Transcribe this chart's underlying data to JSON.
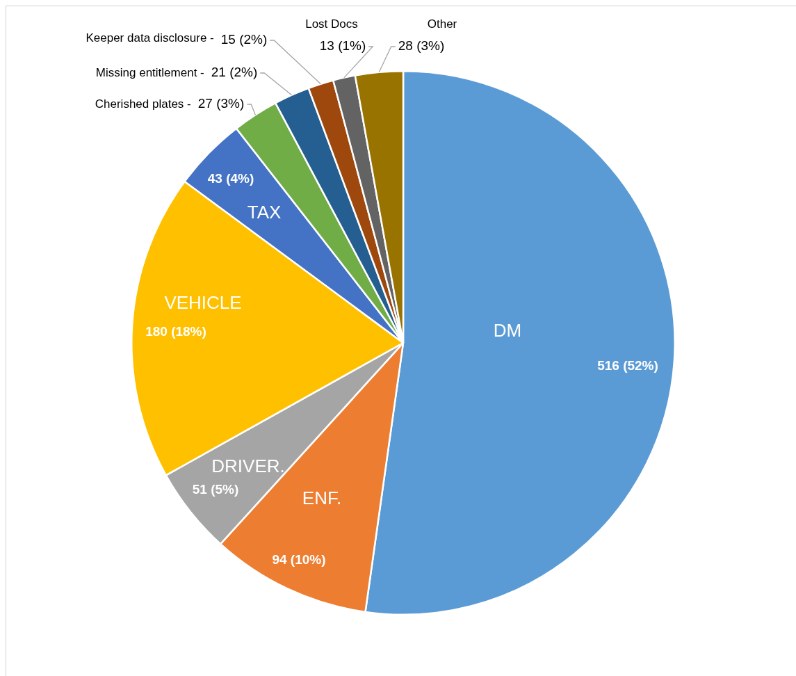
{
  "chart_data": {
    "type": "pie",
    "categories": [
      "DM",
      "ENF.",
      "DRIVER.",
      "VEHICLE",
      "TAX",
      "Cherished plates -",
      "Missing entitlement -",
      "Keeper data disclosure -",
      "Lost Docs",
      "Other"
    ],
    "values": [
      516,
      94,
      51,
      180,
      43,
      27,
      21,
      15,
      13,
      28
    ],
    "colors": [
      "#5b9bd5",
      "#ed7d31",
      "#a5a5a5",
      "#ffc000",
      "#4472c4",
      "#70ad47",
      "#255e91",
      "#9e480e",
      "#636363",
      "#997300"
    ],
    "value_labels": [
      "516 (52%)",
      "94 (10%)",
      "51 (5%)",
      "180 (18%)",
      "43 (4%)",
      "27 (3%)",
      "21 (2%)",
      "15 (2%)",
      "13 (1%)",
      "28 (3%)"
    ],
    "legend": false
  }
}
